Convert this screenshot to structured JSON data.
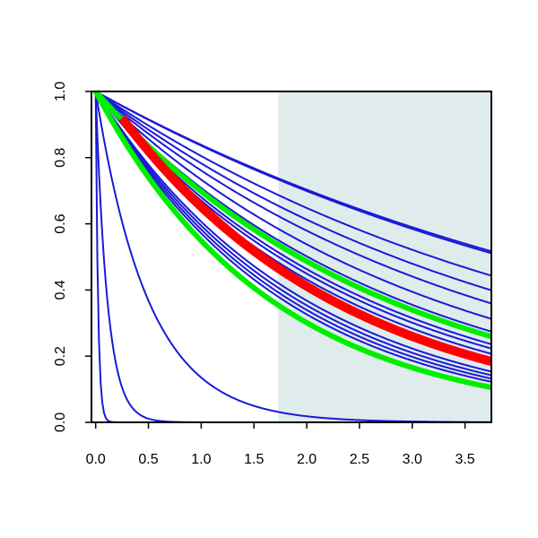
{
  "chart_data": {
    "type": "line",
    "title": "",
    "xlabel": "",
    "ylabel": "",
    "xlim": [
      -0.04,
      3.75
    ],
    "ylim": [
      0,
      1
    ],
    "x_ticks": [
      "0.0",
      "0.5",
      "1.0",
      "1.5",
      "2.0",
      "2.5",
      "3.0",
      "3.5"
    ],
    "y_ticks": [
      "0.0",
      "0.2",
      "0.4",
      "0.6",
      "0.8",
      "1.0"
    ],
    "grid": false,
    "legend": "none",
    "shaded_region": {
      "x_start": 1.73,
      "x_end": 3.75,
      "color": "#e0ecec"
    },
    "series": [
      {
        "color": "#1a1ad8",
        "width": 2,
        "x0": 0,
        "y0": 1.0,
        "rate": 0.179
      },
      {
        "color": "#1a1ad8",
        "width": 2,
        "x0": 0,
        "y0": 1.0,
        "rate": 0.176
      },
      {
        "color": "#1a1ad8",
        "width": 2,
        "x0": 0,
        "y0": 1.0,
        "rate": 0.217
      },
      {
        "color": "#1a1ad8",
        "width": 2,
        "x0": 0,
        "y0": 1.0,
        "rate": 0.245
      },
      {
        "color": "#1a1ad8",
        "width": 2,
        "x0": 0,
        "y0": 1.0,
        "rate": 0.273
      },
      {
        "color": "#1a1ad8",
        "width": 2,
        "x0": 0,
        "y0": 1.0,
        "rate": 0.31
      },
      {
        "color": "#1a1ad8",
        "width": 2,
        "x0": 0,
        "y0": 1.0,
        "rate": 0.345
      },
      {
        "color": "#1a1ad8",
        "width": 2,
        "x0": 0,
        "y0": 1.0,
        "rate": 0.385
      },
      {
        "color": "#1a1ad8",
        "width": 2,
        "x0": 0,
        "y0": 1.0,
        "rate": 0.4
      },
      {
        "color": "#1a1ad8",
        "width": 2,
        "x0": 0,
        "y0": 1.0,
        "rate": 0.42
      },
      {
        "color": "#1a1ad8",
        "width": 2,
        "x0": 0,
        "y0": 1.0,
        "rate": 0.5
      },
      {
        "color": "#1a1ad8",
        "width": 2,
        "x0": 0,
        "y0": 1.0,
        "rate": 0.52
      },
      {
        "color": "#1a1ad8",
        "width": 2,
        "x0": 0,
        "y0": 1.0,
        "rate": 0.54
      },
      {
        "color": "#1a1ad8",
        "width": 2,
        "x0": 0,
        "y0": 1.0,
        "rate": 0.56
      },
      {
        "color": "#1a1ad8",
        "width": 2,
        "x0": 0,
        "y0": 1.0,
        "rate": 2.0
      },
      {
        "color": "#1a1ad8",
        "width": 2,
        "x0": 0,
        "y0": 1.0,
        "rate": 9.0
      },
      {
        "color": "#1a1ad8",
        "width": 2,
        "x0": 0,
        "y0": 1.0,
        "rate": 45.0
      },
      {
        "color": "#00ee00",
        "width": 6,
        "x0": 0,
        "y0": 1.0,
        "rate": 0.36
      },
      {
        "color": "#00ee00",
        "width": 6,
        "x0": 0,
        "y0": 1.0,
        "rate": 0.6
      },
      {
        "color": "#ff0000",
        "width": 10,
        "x0": 0.25,
        "y0": 0.92,
        "rate": 0.46
      }
    ]
  }
}
